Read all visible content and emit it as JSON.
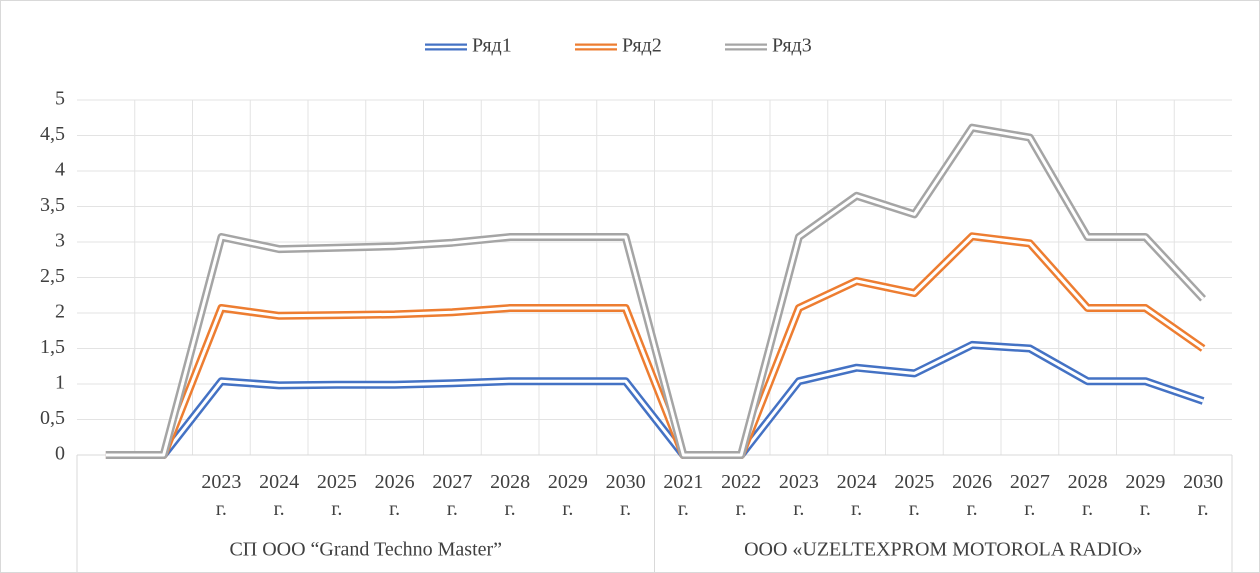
{
  "chart_data": {
    "type": "line",
    "stacked": true,
    "categories": [
      null,
      null,
      "2023 г.",
      "2024 г.",
      "2025 г.",
      "2026 г.",
      "2027 г.",
      "2028 г.",
      "2029 г.",
      "2030 г.",
      "2021 г.",
      "2022 г.",
      "2023 г.",
      "2024 г.",
      "2025 г.",
      "2026 г.",
      "2027 г.",
      "2028 г.",
      "2029 г.",
      "2030 г."
    ],
    "groups": [
      {
        "label": "СП ООО “Grand Techno Master”",
        "count": 10
      },
      {
        "label": "ООО «UZELTEXPROM MOTOROLA RADIO»",
        "count": 10
      }
    ],
    "series": [
      {
        "name": "Ряд1",
        "color": "#4472c4",
        "values": [
          0,
          0,
          1.04,
          0.98,
          0.99,
          0.99,
          1.01,
          1.04,
          1.04,
          1.04,
          0,
          0,
          1.04,
          1.23,
          1.15,
          1.55,
          1.5,
          1.04,
          1.04,
          0.76
        ]
      },
      {
        "name": "Ряд2",
        "color": "#ed7d31",
        "values": [
          0,
          0,
          1.03,
          0.98,
          0.98,
          0.99,
          1.0,
          1.03,
          1.03,
          1.03,
          0,
          0,
          1.03,
          1.22,
          1.13,
          1.53,
          1.48,
          1.03,
          1.03,
          0.74
        ]
      },
      {
        "name": "Ряд3",
        "color": "#a5a5a5",
        "values": [
          0,
          0,
          1.0,
          0.94,
          0.95,
          0.96,
          0.98,
          1.0,
          1.0,
          1.0,
          0,
          0,
          1.0,
          1.2,
          1.11,
          1.53,
          1.49,
          1.0,
          1.0,
          0.7
        ]
      }
    ],
    "ylim": [
      0,
      5
    ],
    "yticks": [
      0,
      {
        "value": 0.5,
        "label": "0,5"
      },
      1,
      {
        "value": 1.5,
        "label": "1,5"
      },
      2,
      {
        "value": 2.5,
        "label": "2,5"
      },
      3,
      {
        "value": 3.5,
        "label": "3,5"
      },
      4,
      {
        "value": 4.5,
        "label": "4,5"
      },
      5
    ],
    "grid": true,
    "legend": "top"
  }
}
